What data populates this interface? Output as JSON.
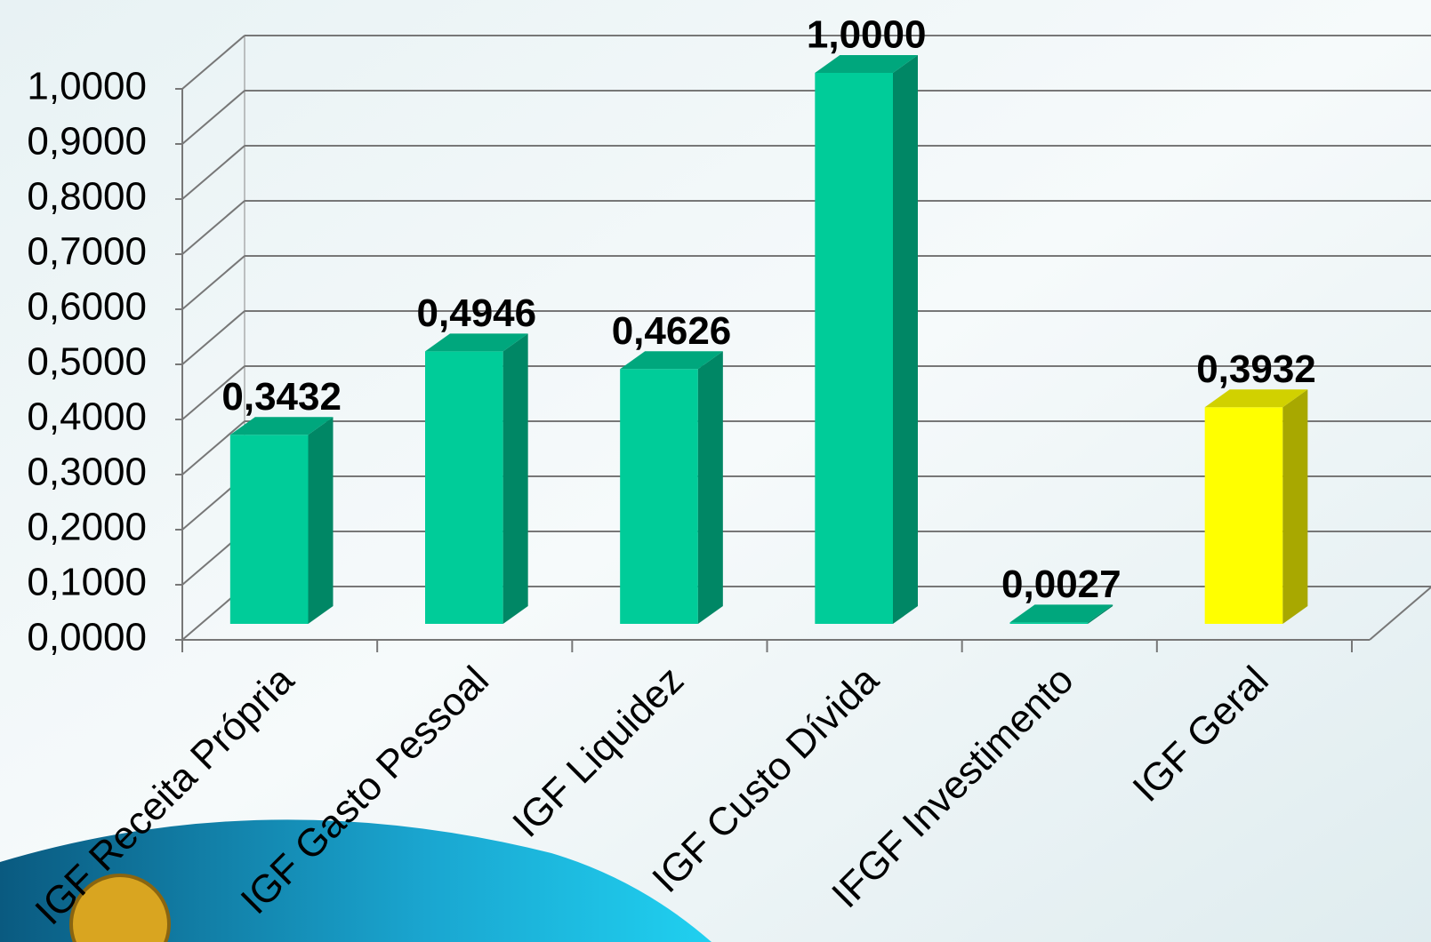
{
  "chart_data": {
    "type": "bar3d",
    "categories": [
      "IGF Receita Própria",
      "IGF Gasto Pessoal",
      "IGF Liquidez",
      "IGF Custo Dívida",
      "IFGF Investimento",
      "IGF Geral"
    ],
    "values": [
      0.3432,
      0.4946,
      0.4626,
      1.0,
      0.0027,
      0.3932
    ],
    "value_labels": [
      "0,3432",
      "0,4946",
      "0,4626",
      "1,0000",
      "0,0027",
      "0,3932"
    ],
    "colors": [
      "#00cc99",
      "#00cc99",
      "#00cc99",
      "#00cc99",
      "#00cc99",
      "#ffff00"
    ],
    "ylim": [
      0,
      1.0
    ],
    "yticks": [
      {
        "value": 0,
        "label": "0,0000"
      },
      {
        "value": 0.1,
        "label": "0,1000"
      },
      {
        "value": 0.2,
        "label": "0,2000"
      },
      {
        "value": 0.3,
        "label": "0,3000"
      },
      {
        "value": 0.4,
        "label": "0,4000"
      },
      {
        "value": 0.5,
        "label": "0,5000"
      },
      {
        "value": 0.6,
        "label": "0,6000"
      },
      {
        "value": 0.7,
        "label": "0,7000"
      },
      {
        "value": 0.8,
        "label": "0,8000"
      },
      {
        "value": 0.9,
        "label": "0,9000"
      },
      {
        "value": 1.0,
        "label": "1,0000"
      }
    ],
    "grid": true
  }
}
